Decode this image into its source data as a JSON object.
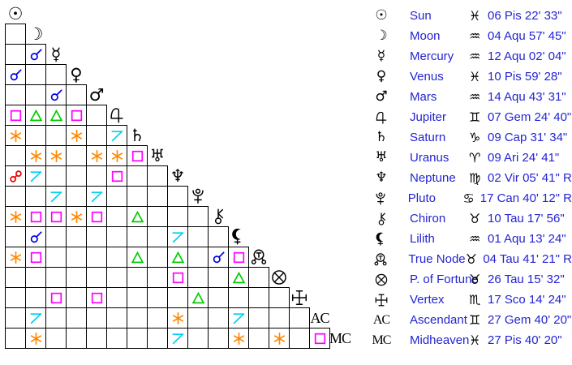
{
  "colors": {
    "glyph_black": "#000000",
    "table_text_blue": "#2424d2",
    "grid_line": "#000000",
    "aspect": {
      "conjunction": "#0000e6",
      "opposition": "#ee0000",
      "trine": "#00cc00",
      "square": "#ff00ff",
      "sextile": "#ff8800",
      "quincunx": "#00d0f0"
    }
  },
  "aspect_grid": {
    "rows": [
      {
        "planet": "sun",
        "cells": []
      },
      {
        "planet": "moon",
        "cells": [
          null
        ]
      },
      {
        "planet": "mercury",
        "cells": [
          null,
          "conjunction"
        ]
      },
      {
        "planet": "venus",
        "cells": [
          "conjunction",
          null,
          null
        ]
      },
      {
        "planet": "mars",
        "cells": [
          null,
          null,
          "conjunction",
          null
        ]
      },
      {
        "planet": "jupiter",
        "cells": [
          "square",
          "trine",
          "trine",
          "square",
          null
        ]
      },
      {
        "planet": "saturn",
        "cells": [
          "sextile",
          null,
          null,
          "sextile",
          null,
          "quincunx"
        ]
      },
      {
        "planet": "uranus",
        "cells": [
          null,
          "sextile",
          "sextile",
          null,
          "sextile",
          "sextile",
          "square"
        ]
      },
      {
        "planet": "neptune",
        "cells": [
          "opposition",
          "quincunx",
          null,
          null,
          null,
          "square",
          null,
          null
        ]
      },
      {
        "planet": "pluto",
        "cells": [
          null,
          null,
          "quincunx",
          null,
          "quincunx",
          null,
          null,
          null,
          null
        ]
      },
      {
        "planet": "chiron",
        "cells": [
          "sextile",
          "square",
          "square",
          "sextile",
          "square",
          null,
          "trine",
          null,
          null,
          null
        ]
      },
      {
        "planet": "lilith",
        "cells": [
          null,
          "conjunction",
          null,
          null,
          null,
          null,
          null,
          null,
          "quincunx",
          null,
          null
        ]
      },
      {
        "planet": "true-node",
        "cells": [
          "sextile",
          "square",
          null,
          null,
          null,
          null,
          "trine",
          null,
          "trine",
          null,
          "conjunction",
          "square"
        ]
      },
      {
        "planet": "fortune",
        "cells": [
          null,
          null,
          null,
          null,
          null,
          null,
          null,
          null,
          "square",
          null,
          null,
          "trine",
          null
        ]
      },
      {
        "planet": "vertex",
        "cells": [
          null,
          null,
          "square",
          null,
          "square",
          null,
          null,
          null,
          null,
          "trine",
          null,
          null,
          null,
          null
        ]
      },
      {
        "planet": "ascendant",
        "cells": [
          null,
          "quincunx",
          null,
          null,
          null,
          null,
          null,
          null,
          "sextile",
          null,
          null,
          "quincunx",
          null,
          null,
          null
        ]
      },
      {
        "planet": "midheaven",
        "cells": [
          null,
          "sextile",
          null,
          null,
          null,
          null,
          null,
          null,
          "quincunx",
          null,
          null,
          "sextile",
          null,
          "sextile",
          null,
          "square"
        ]
      }
    ],
    "angle_labels": {
      "ascendant": "AC",
      "midheaven": "MC"
    }
  },
  "positions_table": {
    "rows": [
      {
        "planet": "sun",
        "name": "Sun",
        "sign": "pisces",
        "position": "06 Pis 22' 33\""
      },
      {
        "planet": "moon",
        "name": "Moon",
        "sign": "aquarius",
        "position": "04 Aqu 57' 45\""
      },
      {
        "planet": "mercury",
        "name": "Mercury",
        "sign": "aquarius",
        "position": "12 Aqu 02' 04\""
      },
      {
        "planet": "venus",
        "name": "Venus",
        "sign": "pisces",
        "position": "10 Pis 59' 28\""
      },
      {
        "planet": "mars",
        "name": "Mars",
        "sign": "aquarius",
        "position": "14 Aqu 43' 31\""
      },
      {
        "planet": "jupiter",
        "name": "Jupiter",
        "sign": "gemini",
        "position": "07 Gem 24' 40\""
      },
      {
        "planet": "saturn",
        "name": "Saturn",
        "sign": "capricorn",
        "position": "09 Cap 31' 34\""
      },
      {
        "planet": "uranus",
        "name": "Uranus",
        "sign": "aries",
        "position": "09 Ari 24' 41\""
      },
      {
        "planet": "neptune",
        "name": "Neptune",
        "sign": "virgo",
        "position": "02 Vir 05' 41\" R"
      },
      {
        "planet": "pluto",
        "name": "Pluto",
        "sign": "cancer",
        "position": "17 Can 40' 12\" R"
      },
      {
        "planet": "chiron",
        "name": "Chiron",
        "sign": "taurus",
        "position": "10 Tau 17' 56\""
      },
      {
        "planet": "lilith",
        "name": "Lilith",
        "sign": "aquarius",
        "position": "01 Aqu 13' 24\""
      },
      {
        "planet": "true-node",
        "name": "True Node",
        "sign": "taurus",
        "position": "04 Tau 41' 21\" R"
      },
      {
        "planet": "fortune",
        "name": "P. of Fortune",
        "sign": "taurus",
        "position": "26 Tau 15' 32\""
      },
      {
        "planet": "vertex",
        "name": "Vertex",
        "sign": "scorpio",
        "position": "17 Sco 14' 24\""
      },
      {
        "planet": "ascendant",
        "name": "Ascendant",
        "sign": "gemini",
        "position": "27 Gem 40' 20\""
      },
      {
        "planet": "midheaven",
        "name": "Midheaven",
        "sign": "pisces",
        "position": "27 Pis 40' 20\""
      }
    ]
  }
}
